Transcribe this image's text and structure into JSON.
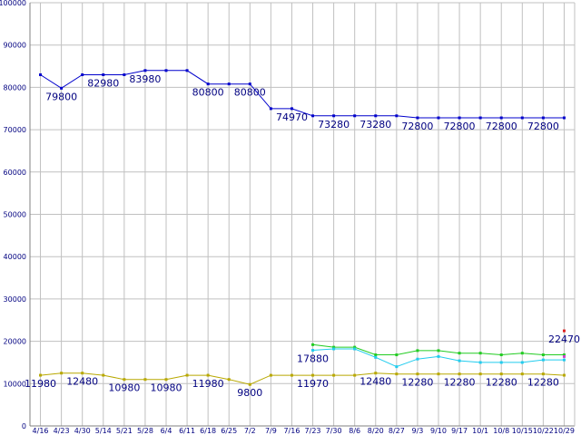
{
  "chart_data": {
    "type": "line",
    "title": "",
    "xlabel": "",
    "ylabel": "",
    "grid": true,
    "legend": "none",
    "ylim": [
      0,
      100000
    ],
    "y_ticks": [
      0,
      10000,
      20000,
      30000,
      40000,
      50000,
      60000,
      70000,
      80000,
      90000,
      100000
    ],
    "y_tick_labels": [
      "0",
      "10000",
      "20000",
      "30000",
      "40000",
      "50000",
      "60000",
      "70000",
      "80000",
      "90000",
      "100000"
    ],
    "categories": [
      "4/16",
      "4/23",
      "4/30",
      "5/14",
      "5/21",
      "5/28",
      "6/4",
      "6/11",
      "6/18",
      "6/25",
      "7/2",
      "7/9",
      "7/16",
      "7/23",
      "7/30",
      "8/6",
      "8/20",
      "8/27",
      "9/3",
      "9/10",
      "9/17",
      "10/1",
      "10/8",
      "10/15",
      "10/22",
      "10/29"
    ],
    "series": [
      {
        "color": "#0000cc",
        "values": [
          82980,
          79800,
          82980,
          82980,
          82980,
          83980,
          83980,
          83980,
          80800,
          80800,
          80800,
          74970,
          74970,
          73280,
          73280,
          73280,
          73280,
          73280,
          72800,
          72800,
          72800,
          72800,
          72800,
          72800,
          72800,
          72800
        ],
        "labels": [
          {
            "i": 1,
            "text": "79800"
          },
          {
            "i": 3,
            "text": "82980"
          },
          {
            "i": 5,
            "text": "83980"
          },
          {
            "i": 8,
            "text": "80800"
          },
          {
            "i": 10,
            "text": "80800"
          },
          {
            "i": 12,
            "text": "74970"
          },
          {
            "i": 14,
            "text": "73280"
          },
          {
            "i": 16,
            "text": "73280"
          },
          {
            "i": 18,
            "text": "72800"
          },
          {
            "i": 20,
            "text": "72800"
          },
          {
            "i": 22,
            "text": "72800"
          },
          {
            "i": 24,
            "text": "72800"
          }
        ]
      },
      {
        "color": "#b8a800",
        "values": [
          11980,
          12480,
          12480,
          11980,
          10980,
          10980,
          10980,
          11980,
          11980,
          10980,
          9800,
          11970,
          11970,
          11970,
          11970,
          11970,
          12480,
          12280,
          12280,
          12280,
          12280,
          12280,
          12280,
          12280,
          12280,
          11980
        ],
        "labels": [
          {
            "i": 0,
            "text": "11980"
          },
          {
            "i": 2,
            "text": "12480"
          },
          {
            "i": 4,
            "text": "10980"
          },
          {
            "i": 6,
            "text": "10980"
          },
          {
            "i": 8,
            "text": "11980"
          },
          {
            "i": 10,
            "text": "9800"
          },
          {
            "i": 13,
            "text": "11970"
          },
          {
            "i": 16,
            "text": "12480"
          },
          {
            "i": 18,
            "text": "12280"
          },
          {
            "i": 20,
            "text": "12280"
          },
          {
            "i": 22,
            "text": "12280"
          },
          {
            "i": 24,
            "text": "12280"
          }
        ]
      },
      {
        "color": "#22cc22",
        "values": [
          null,
          null,
          null,
          null,
          null,
          null,
          null,
          null,
          null,
          null,
          null,
          null,
          null,
          19200,
          18600,
          18600,
          16800,
          16800,
          17800,
          17800,
          17200,
          17200,
          16800,
          17200,
          16800,
          16800
        ],
        "labels": []
      },
      {
        "color": "#22ccee",
        "values": [
          null,
          null,
          null,
          null,
          null,
          null,
          null,
          null,
          null,
          null,
          null,
          null,
          null,
          17880,
          18200,
          18200,
          16200,
          14000,
          15800,
          16400,
          15400,
          15000,
          15000,
          15000,
          15600,
          15600
        ],
        "labels": [
          {
            "i": 13,
            "text": "17880"
          }
        ]
      },
      {
        "color": "#e02020",
        "values": [
          null,
          null,
          null,
          null,
          null,
          null,
          null,
          null,
          null,
          null,
          null,
          null,
          null,
          null,
          null,
          null,
          null,
          null,
          null,
          null,
          null,
          null,
          null,
          null,
          null,
          22470
        ],
        "labels": [
          {
            "i": 25,
            "text": "22470"
          }
        ]
      },
      {
        "color": "#cc44cc",
        "values": [
          null,
          null,
          null,
          null,
          null,
          null,
          null,
          null,
          null,
          null,
          null,
          null,
          null,
          null,
          null,
          null,
          null,
          null,
          null,
          null,
          null,
          null,
          null,
          null,
          null,
          16400
        ],
        "labels": []
      }
    ]
  }
}
